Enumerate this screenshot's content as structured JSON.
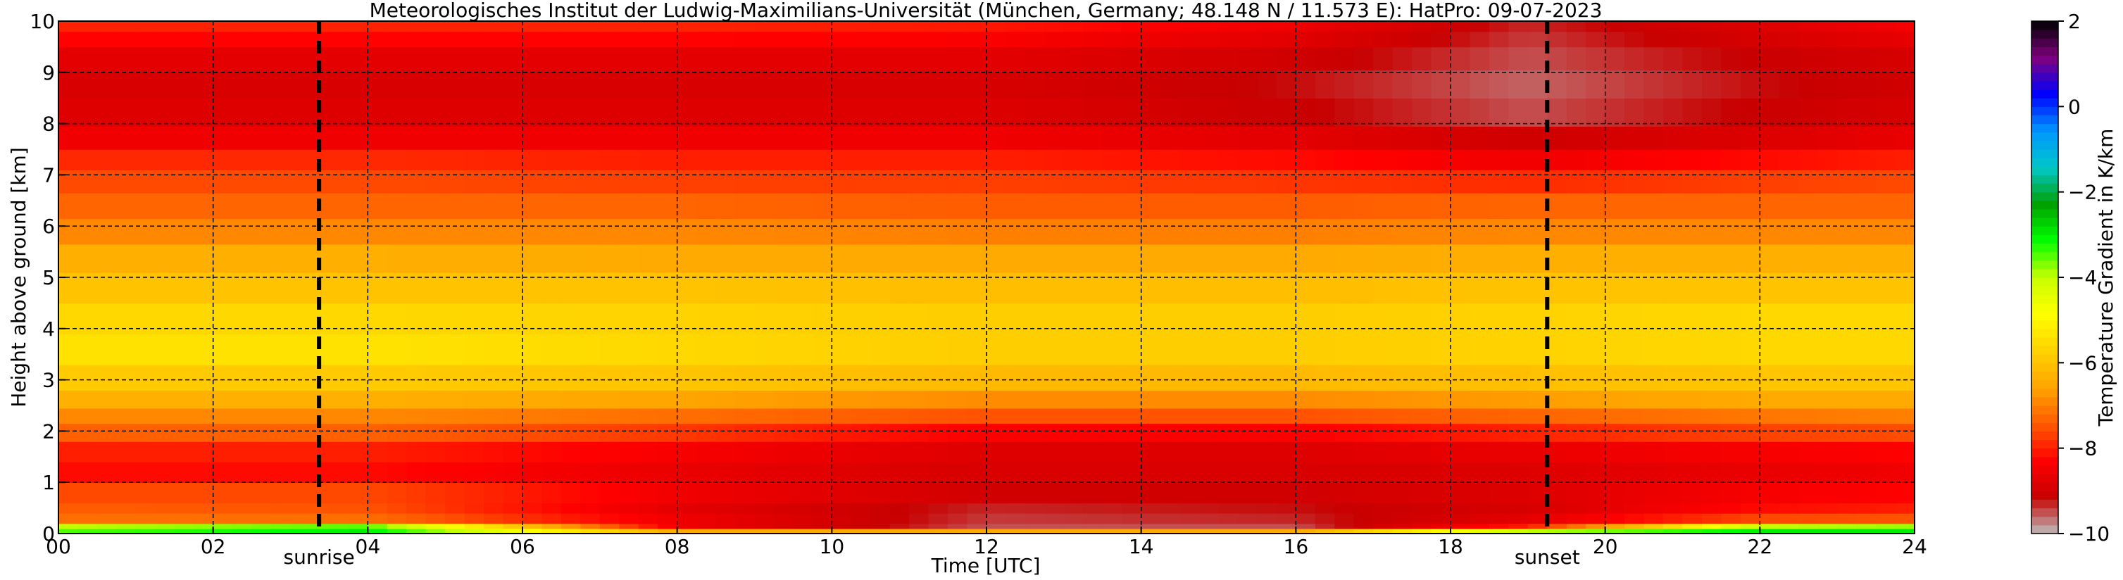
{
  "chart_data": {
    "type": "heatmap",
    "title": "Meteorologisches Institut der Ludwig-Maximilians-Universität (München, Germany; 48.148 N / 11.573 E):    HatPro: 09-07-2023",
    "xlabel": "Time [UTC]",
    "ylabel": "Height above ground [km]",
    "colorbar_label": "Temperature Gradient in K/km",
    "xlim": [
      0,
      24
    ],
    "ylim": [
      0,
      10
    ],
    "clim": [
      -10,
      2
    ],
    "x_ticks": [
      "00",
      "02",
      "04",
      "06",
      "08",
      "10",
      "12",
      "14",
      "16",
      "18",
      "20",
      "22",
      "24"
    ],
    "y_ticks": [
      "0",
      "1",
      "2",
      "3",
      "4",
      "5",
      "6",
      "7",
      "8",
      "9",
      "10"
    ],
    "colorbar_ticks": [
      "−10",
      "−8",
      "−6",
      "−4",
      "−2",
      "0",
      "2"
    ],
    "grid": true,
    "events": [
      {
        "label": "sunrise",
        "time_utc": 3.37
      },
      {
        "label": "sunset",
        "time_utc": 19.25
      }
    ],
    "profile_km_vs_gradient": {
      "height_km": [
        0.05,
        0.15,
        0.3,
        0.5,
        0.8,
        1.2,
        1.6,
        2.0,
        2.3,
        2.6,
        3.0,
        3.6,
        4.2,
        4.8,
        5.4,
        5.9,
        6.4,
        6.9,
        7.3,
        7.7,
        8.2,
        8.8,
        9.3,
        9.7,
        9.95
      ],
      "times_utc": [
        0,
        4,
        8,
        12,
        16,
        19,
        22,
        24
      ],
      "gradient_K_per_km": [
        [
          -3.5,
          -3.0,
          -6.5,
          -6.5,
          -6.5,
          -4.0,
          -3.0,
          -3.0
        ],
        [
          -4.0,
          -3.5,
          -8.5,
          -9.5,
          -9.5,
          -8.0,
          -4.0,
          -3.8
        ],
        [
          -7.2,
          -7.2,
          -8.5,
          -9.4,
          -9.3,
          -8.7,
          -7.6,
          -7.5
        ],
        [
          -7.4,
          -7.5,
          -8.7,
          -9.3,
          -9.2,
          -8.9,
          -8.2,
          -8.0
        ],
        [
          -7.6,
          -7.6,
          -8.5,
          -9.0,
          -9.0,
          -8.8,
          -8.4,
          -8.3
        ],
        [
          -8.2,
          -8.2,
          -8.6,
          -8.9,
          -8.9,
          -8.8,
          -8.6,
          -8.5
        ],
        [
          -8.0,
          -8.0,
          -8.4,
          -8.8,
          -8.8,
          -8.6,
          -8.4,
          -8.3
        ],
        [
          -7.3,
          -7.3,
          -7.7,
          -8.3,
          -8.3,
          -7.9,
          -7.6,
          -7.5
        ],
        [
          -6.9,
          -6.9,
          -7.2,
          -7.5,
          -7.5,
          -7.3,
          -7.1,
          -7.0
        ],
        [
          -6.4,
          -6.4,
          -6.6,
          -6.9,
          -6.9,
          -6.7,
          -6.5,
          -6.5
        ],
        [
          -5.9,
          -5.9,
          -6.0,
          -6.2,
          -6.2,
          -6.1,
          -6.0,
          -6.0
        ],
        [
          -5.4,
          -5.4,
          -5.6,
          -5.8,
          -5.8,
          -5.7,
          -5.6,
          -5.6
        ],
        [
          -5.6,
          -5.6,
          -5.7,
          -5.8,
          -5.8,
          -5.7,
          -5.6,
          -5.6
        ],
        [
          -6.0,
          -6.0,
          -6.0,
          -6.1,
          -6.1,
          -6.0,
          -6.0,
          -6.0
        ],
        [
          -6.4,
          -6.4,
          -6.5,
          -6.5,
          -6.5,
          -6.4,
          -6.4,
          -6.4
        ],
        [
          -6.9,
          -6.9,
          -6.9,
          -7.0,
          -7.0,
          -6.9,
          -6.9,
          -6.9
        ],
        [
          -7.3,
          -7.3,
          -7.3,
          -7.4,
          -7.4,
          -7.3,
          -7.3,
          -7.3
        ],
        [
          -7.6,
          -7.6,
          -7.7,
          -7.7,
          -7.8,
          -7.9,
          -7.7,
          -7.6
        ],
        [
          -7.9,
          -7.9,
          -8.0,
          -8.0,
          -8.2,
          -8.5,
          -8.2,
          -8.0
        ],
        [
          -8.5,
          -8.5,
          -8.5,
          -8.5,
          -8.7,
          -9.0,
          -8.8,
          -8.6
        ],
        [
          -8.8,
          -8.8,
          -8.8,
          -8.8,
          -9.1,
          -9.5,
          -9.1,
          -8.9
        ],
        [
          -8.9,
          -8.9,
          -8.9,
          -8.9,
          -9.2,
          -9.6,
          -9.2,
          -9.0
        ],
        [
          -8.7,
          -8.7,
          -8.7,
          -8.7,
          -9.0,
          -9.5,
          -9.1,
          -8.9
        ],
        [
          -8.2,
          -8.2,
          -8.2,
          -8.3,
          -8.7,
          -9.4,
          -8.9,
          -8.6
        ],
        [
          -7.9,
          -7.9,
          -7.9,
          -8.0,
          -8.5,
          -9.3,
          -8.8,
          -8.4
        ]
      ]
    },
    "colorbar_colors": [
      "#bdbdbd",
      "#c80000",
      "#ff0000",
      "#ff5a00",
      "#ffa500",
      "#ffd200",
      "#ffff00",
      "#c8ff00",
      "#00ff00",
      "#00a000",
      "#00c8c8",
      "#0096ff",
      "#0000ff",
      "#7f007f",
      "#000000"
    ]
  }
}
